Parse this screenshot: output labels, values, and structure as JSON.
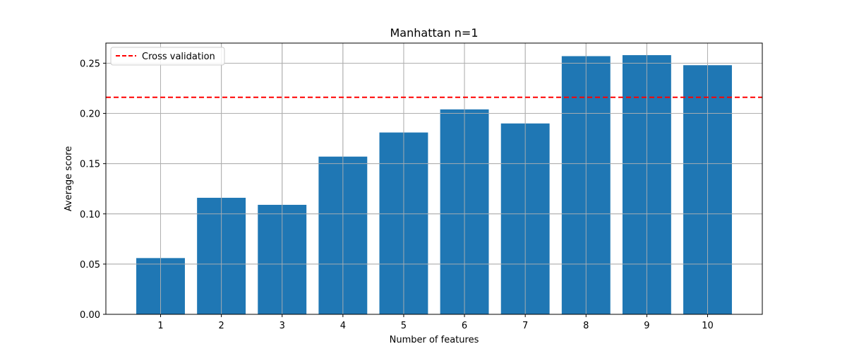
{
  "chart_data": {
    "type": "bar",
    "title": "Manhattan n=1",
    "xlabel": "Number of features",
    "ylabel": "Average score",
    "categories": [
      "1",
      "2",
      "3",
      "4",
      "5",
      "6",
      "7",
      "8",
      "9",
      "10"
    ],
    "values": [
      0.056,
      0.116,
      0.109,
      0.157,
      0.181,
      0.204,
      0.19,
      0.257,
      0.258,
      0.248
    ],
    "ylim": [
      0,
      0.27
    ],
    "yticks": [
      "0.00",
      "0.05",
      "0.10",
      "0.15",
      "0.20",
      "0.25"
    ],
    "grid": true,
    "bar_color": "#1f77b4",
    "reference_line": {
      "label": "Cross validation",
      "value": 0.216,
      "color": "#ff0000",
      "style": "dashed"
    },
    "legend_position": "top-left"
  }
}
